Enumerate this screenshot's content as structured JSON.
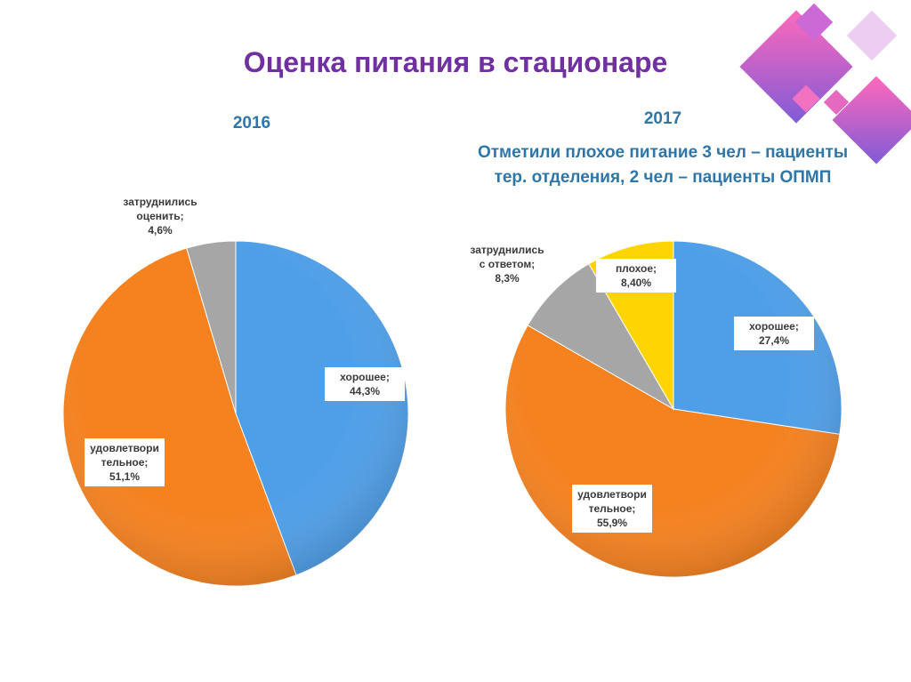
{
  "title": "Оценка питания в стационаре",
  "chart_data": [
    {
      "type": "pie",
      "title": "2016",
      "categories": [
        "хорошее;",
        "удовлетвори тельное;",
        "затруднились оценить;"
      ],
      "values": [
        44.3,
        51.1,
        4.6
      ],
      "value_labels": [
        "44,3%",
        "51,1%",
        "4,6%"
      ],
      "colors": [
        "#4f9fe8",
        "#f5811f",
        "#a6a6a6"
      ]
    },
    {
      "type": "pie",
      "title": "2017",
      "subtitle": "Отметили плохое питание 3 чел – пациенты тер. отделения, 2 чел – пациенты ОПМП",
      "categories": [
        "хорошее;",
        "удовлетвори тельное;",
        "затруднились с ответом;",
        "плохое;"
      ],
      "values": [
        27.4,
        55.9,
        8.3,
        8.4
      ],
      "value_labels": [
        "27,4%",
        "55,9%",
        "8,3%",
        "8,40%"
      ],
      "colors": [
        "#4f9fe8",
        "#f5811f",
        "#a6a6a6",
        "#ffd400"
      ]
    }
  ]
}
